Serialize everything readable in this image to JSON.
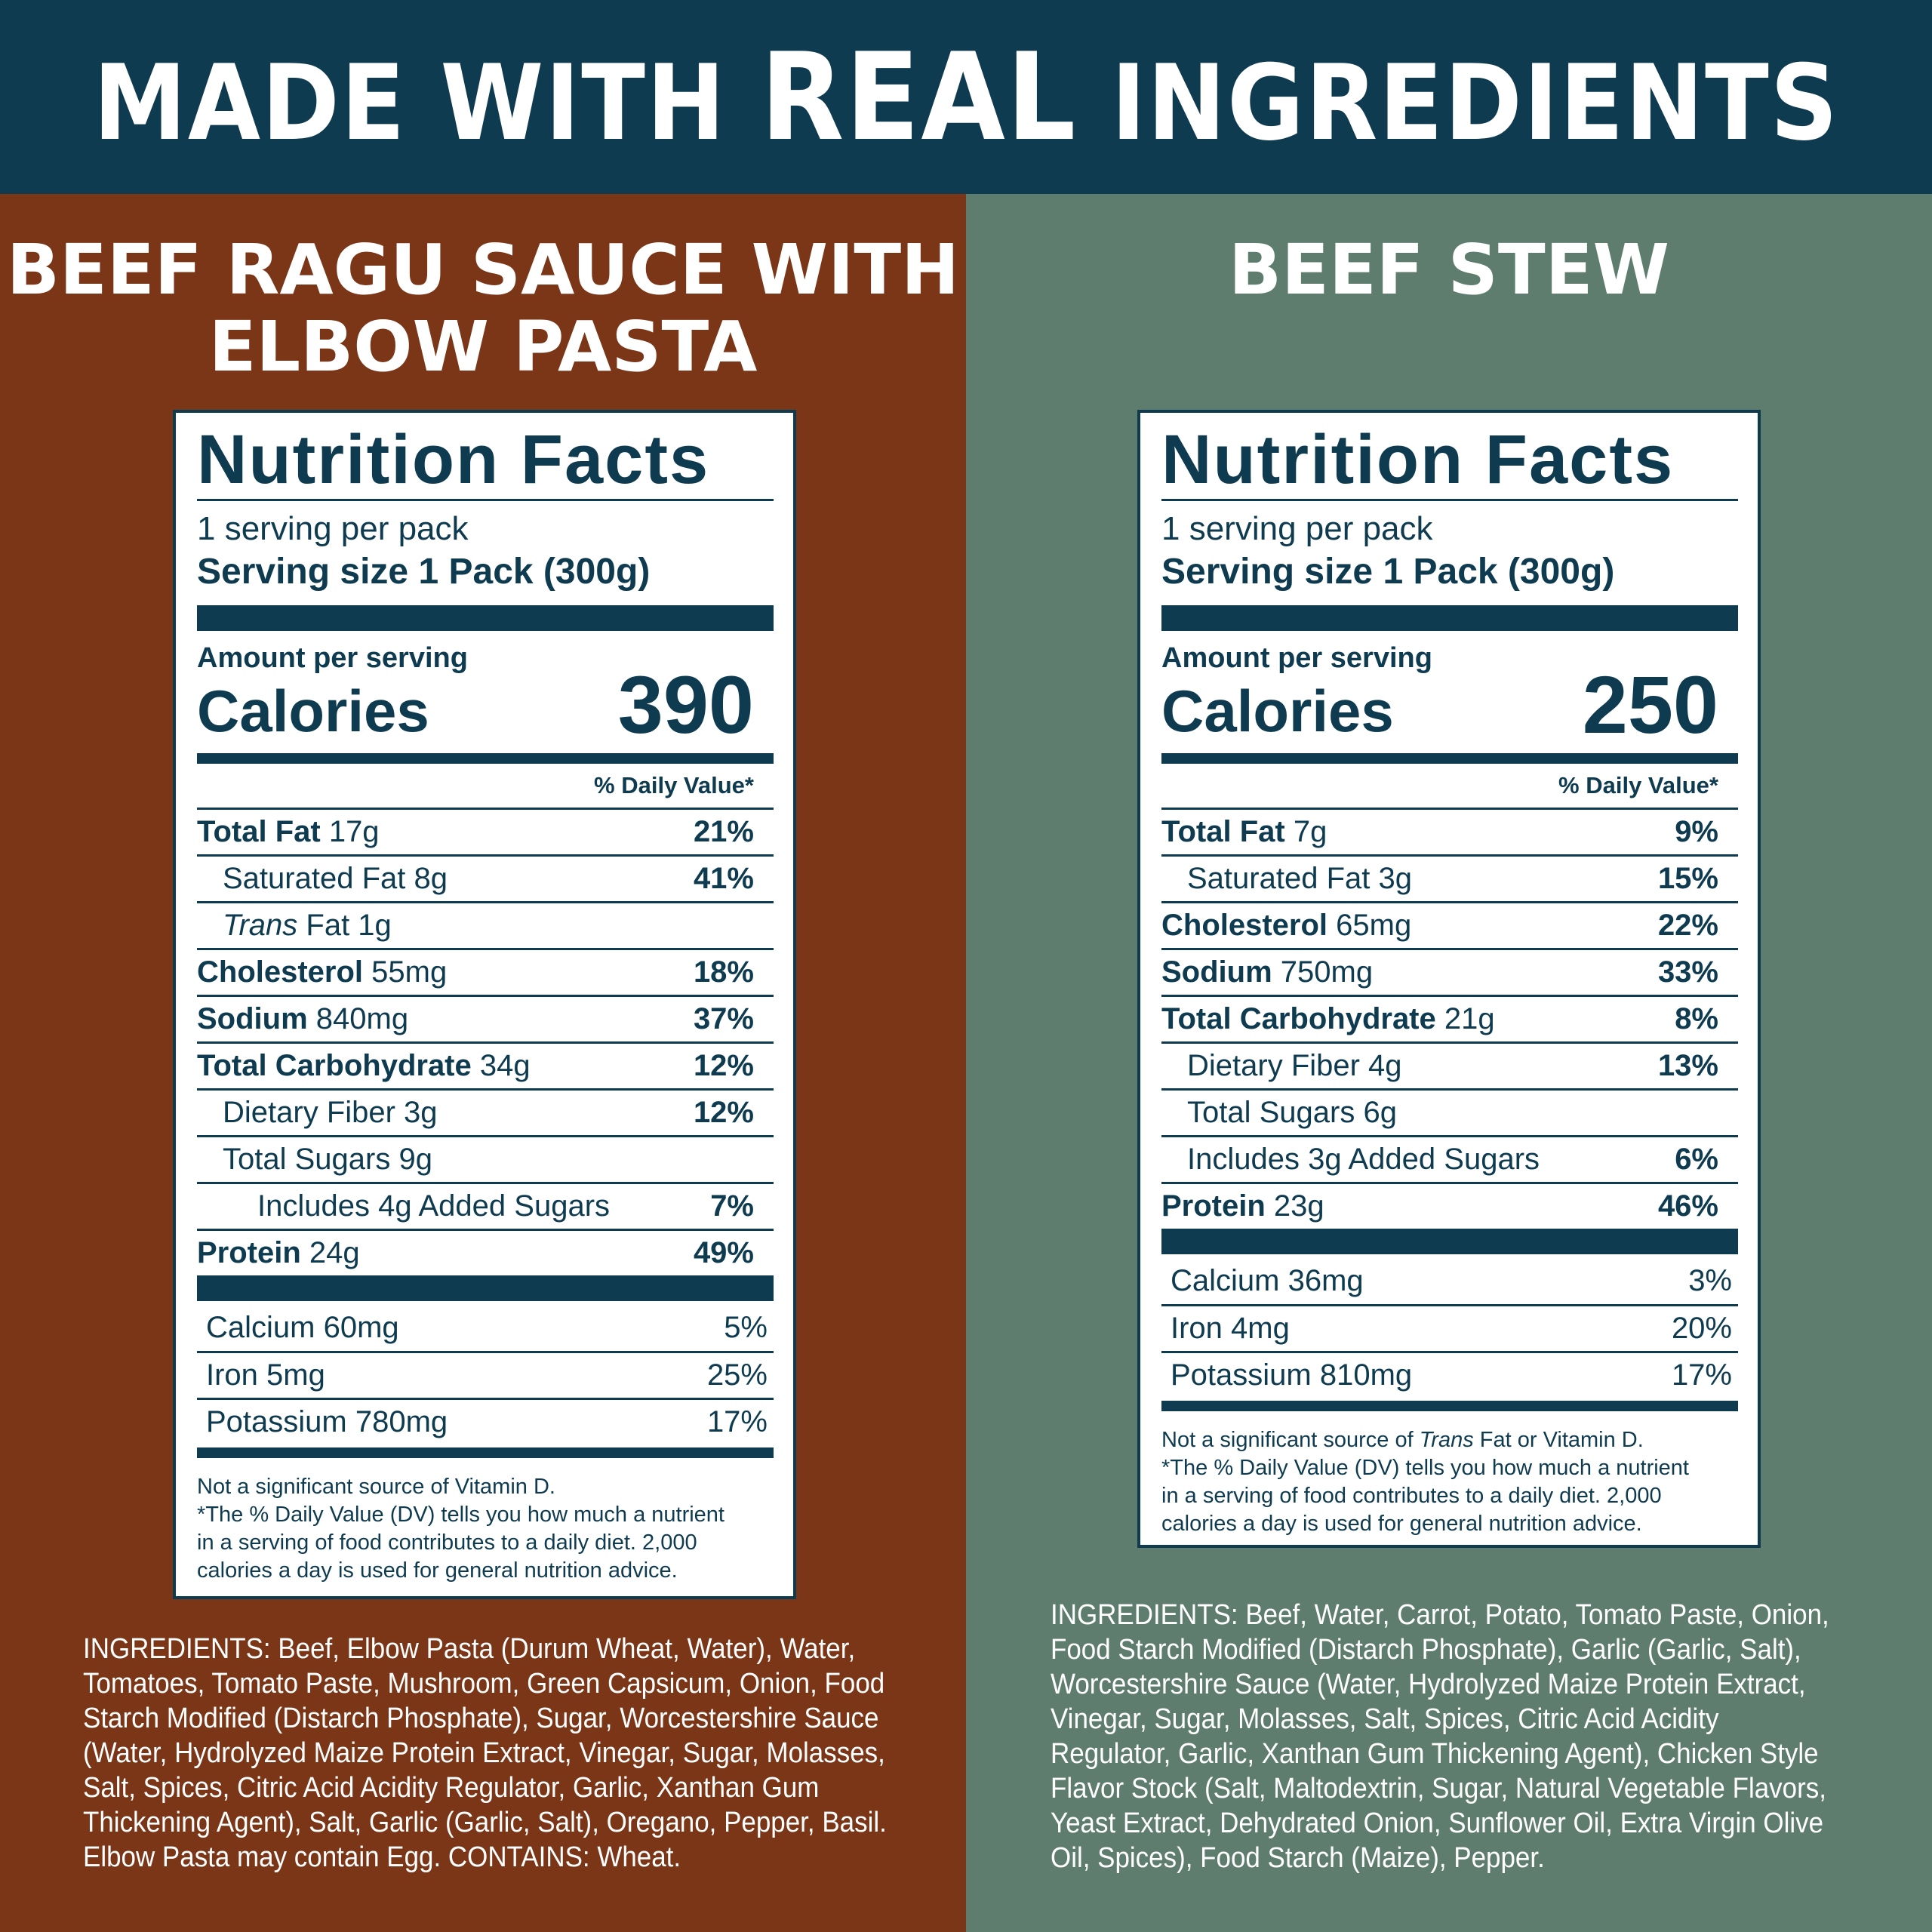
{
  "banner": {
    "part1": "MADE WITH ",
    "part2": "REAL",
    "part3": " INGREDIENTS"
  },
  "colors": {
    "banner": "#0f3b50",
    "left_panel": "#7b3517",
    "right_panel": "#5e7d6f",
    "label_ink": "#0f3b50"
  },
  "left": {
    "title_line1": "BEEF RAGU SAUCE WITH",
    "title_line2": "ELBOW PASTA",
    "nf": {
      "title": "Nutrition Facts",
      "servings": "1 serving per pack",
      "serving_size": "Serving size 1 Pack (300g)",
      "amount": "Amount per serving",
      "calories_label": "Calories",
      "calories": "390",
      "dv_header": "% Daily Value*",
      "rows": [
        {
          "bold": "Total Fat",
          "amt": " 17g",
          "pct": "21%"
        },
        {
          "bold": "",
          "amt": "Saturated Fat 8g",
          "pct": "41%"
        },
        {
          "italic": "Trans",
          "amt": " Fat 1g",
          "pct": ""
        },
        {
          "bold": "Cholesterol",
          "amt": " 55mg",
          "pct": "18%"
        },
        {
          "bold": "Sodium",
          "amt": " 840mg",
          "pct": "37%"
        },
        {
          "bold": "Total Carbohydrate",
          "amt": " 34g",
          "pct": "12%"
        },
        {
          "bold": "",
          "amt": "Dietary Fiber 3g",
          "pct": "12%"
        },
        {
          "bold": "",
          "amt": "Total Sugars 9g",
          "pct": ""
        },
        {
          "bold": "",
          "amt": "Includes 4g Added Sugars",
          "pct": "7%"
        },
        {
          "bold": "Protein",
          "amt": " 24g",
          "pct": "49%"
        }
      ],
      "vitamins": [
        {
          "name": "Calcium 60mg",
          "pct": "5%"
        },
        {
          "name": "Iron 5mg",
          "pct": "25%"
        },
        {
          "name": "Potassium 780mg",
          "pct": "17%"
        }
      ],
      "foot1": "Not a significant source of Vitamin D.",
      "foot2": "*The % Daily Value (DV) tells you how much a nutrient",
      "foot3": "in a serving of food contributes to a daily diet. 2,000",
      "foot4": "calories a day is used for general nutrition advice."
    },
    "ingredients": [
      "INGREDIENTS: Beef, Elbow Pasta (Durum Wheat, Water), Water,",
      "Tomatoes, Tomato Paste, Mushroom, Green Capsicum, Onion, Food",
      "Starch Modified  (Distarch Phosphate), Sugar, Worcestershire Sauce",
      "(Water, Hydrolyzed Maize Protein Extract, Vinegar, Sugar, Molasses,",
      "Salt, Spices, Citric Acid Acidity Regulator, Garlic, Xanthan Gum",
      "Thickening Agent), Salt, Garlic (Garlic, Salt), Oregano, Pepper, Basil.",
      "Elbow Pasta may contain Egg. CONTAINS: Wheat."
    ]
  },
  "right": {
    "title_line1": "BEEF STEW",
    "nf": {
      "title": "Nutrition Facts",
      "servings": "1 serving per pack",
      "serving_size": "Serving size 1 Pack (300g)",
      "amount": "Amount per serving",
      "calories_label": "Calories",
      "calories": "250",
      "dv_header": "% Daily Value*",
      "rows": [
        {
          "bold": "Total Fat",
          "amt": " 7g",
          "pct": "9%"
        },
        {
          "bold": "",
          "amt": "Saturated Fat 3g",
          "pct": "15%"
        },
        {
          "bold": "Cholesterol",
          "amt": " 65mg",
          "pct": "22%"
        },
        {
          "bold": "Sodium",
          "amt": " 750mg",
          "pct": "33%"
        },
        {
          "bold": "Total Carbohydrate",
          "amt": " 21g",
          "pct": "8%"
        },
        {
          "bold": "",
          "amt": "Dietary Fiber 4g",
          "pct": "13%"
        },
        {
          "bold": "",
          "amt": "Total Sugars 6g",
          "pct": ""
        },
        {
          "bold": "",
          "amt": "Includes 3g Added Sugars",
          "pct": "6%"
        },
        {
          "bold": "Protein",
          "amt": " 23g",
          "pct": "46%"
        }
      ],
      "vitamins": [
        {
          "name": "Calcium 36mg",
          "pct": "3%"
        },
        {
          "name": "Iron 4mg",
          "pct": "20%"
        },
        {
          "name": "Potassium 810mg",
          "pct": "17%"
        }
      ],
      "foot1a": "Not a significant source of ",
      "foot1b": "Trans",
      "foot1c": " Fat or Vitamin D.",
      "foot2": "*The % Daily Value (DV) tells you how much a nutrient",
      "foot3": "in a serving of food contributes to a daily diet. 2,000",
      "foot4": "calories a day is used for general nutrition advice."
    },
    "ingredients": [
      "INGREDIENTS: Beef, Water, Carrot, Potato, Tomato Paste, Onion,",
      "Food Starch Modified (Distarch Phosphate), Garlic (Garlic, Salt),",
      "Worcestershire Sauce (Water, Hydrolyzed Maize Protein Extract,",
      "Vinegar, Sugar, Molasses, Salt, Spices, Citric Acid Acidity",
      "Regulator, Garlic, Xanthan Gum Thickening Agent), Chicken Style",
      "Flavor Stock (Salt, Maltodextrin, Sugar, Natural Vegetable Flavors,",
      "Yeast Extract, Dehydrated Onion, Sunflower Oil, Extra Virgin Olive",
      "Oil, Spices), Food Starch (Maize), Pepper."
    ]
  }
}
